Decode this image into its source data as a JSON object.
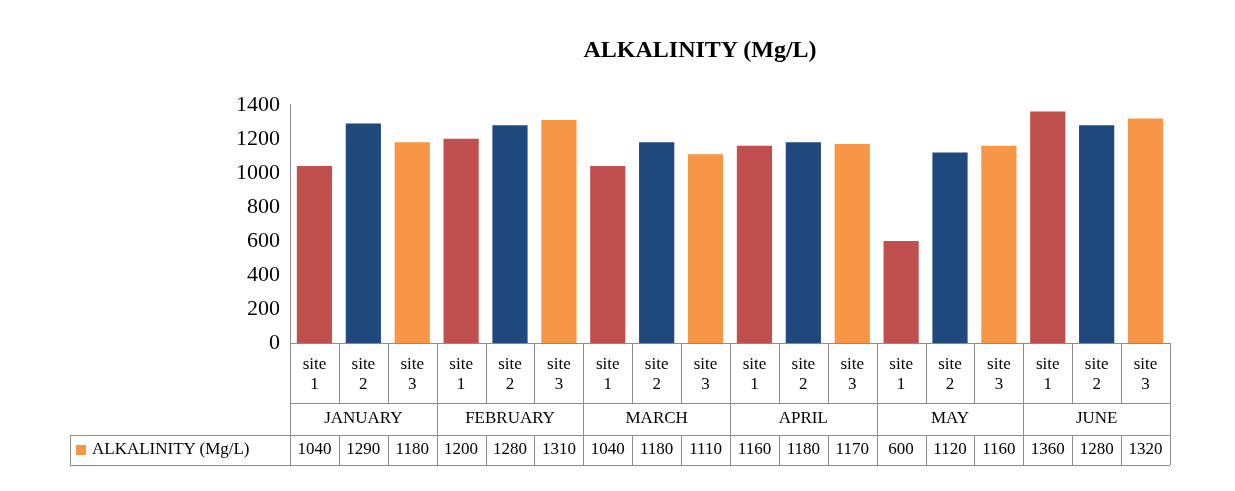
{
  "chart_data": {
    "type": "bar",
    "title": "ALKALINITY (Mg/L)",
    "categories": [
      "site 1",
      "site 2",
      "site 3",
      "site 1",
      "site 2",
      "site 3",
      "site 1",
      "site 2",
      "site 3",
      "site 1",
      "site 2",
      "site 3",
      "site 1",
      "site 2",
      "site 3",
      "site 1",
      "site 2",
      "site 3"
    ],
    "series": [
      {
        "name": "ALKALINITY (Mg/L)",
        "color": "#f79646",
        "colors": [
          "#c0504d",
          "#1f497d",
          "#f79646",
          "#c0504d",
          "#1f497d",
          "#f79646",
          "#c0504d",
          "#1f497d",
          "#f79646",
          "#c0504d",
          "#1f497d",
          "#f79646",
          "#c0504d",
          "#1f497d",
          "#f79646",
          "#c0504d",
          "#1f497d",
          "#f79646"
        ],
        "values": [
          1040,
          1290,
          1180,
          1200,
          1280,
          1310,
          1040,
          1180,
          1110,
          1160,
          1180,
          1170,
          600,
          1120,
          1160,
          1360,
          1280,
          1320
        ]
      }
    ],
    "annotations": [
      "JANUARY",
      "FEBRUARY",
      "MARCH",
      "APRIL",
      "MAY",
      "JUNE"
    ],
    "ylim": [
      0,
      1400
    ],
    "yticks": [
      0,
      200,
      400,
      600,
      800,
      1000,
      1200,
      1400
    ],
    "grid": false,
    "legend": "bottom",
    "data_labels": true
  }
}
